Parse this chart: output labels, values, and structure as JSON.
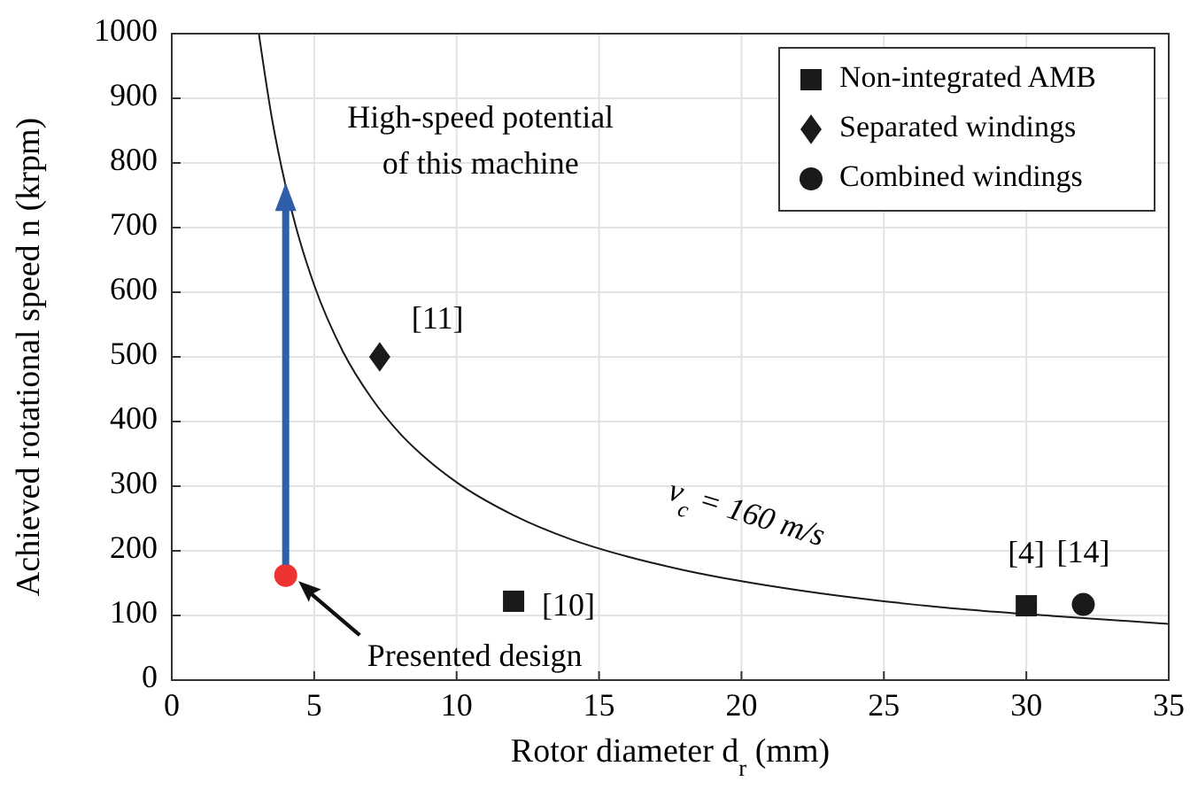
{
  "chart_data": {
    "type": "scatter",
    "xlabel": "Rotor diameter d$_{r}$ (mm)",
    "ylabel": "Achieved rotational speed n (krpm)",
    "xlim": [
      0,
      35
    ],
    "ylim": [
      0,
      1000
    ],
    "xticks": [
      0,
      5,
      10,
      15,
      20,
      25,
      30,
      35
    ],
    "yticks": [
      0,
      100,
      200,
      300,
      400,
      500,
      600,
      700,
      800,
      900,
      1000
    ],
    "grid": true,
    "legend": "top right",
    "series": [
      {
        "name": "Non-integrated AMB",
        "color": "#1a1a1a",
        "marker": "square",
        "x": [
          12,
          30
        ],
        "values": [
          122,
          115
        ]
      },
      {
        "name": "Separated windings",
        "color": "#1a1a1a",
        "marker": "diamond",
        "x": [
          7.3
        ],
        "values": [
          500
        ]
      },
      {
        "name": "Combined windings",
        "color": "#1a1a1a",
        "marker": "circle",
        "x": [
          32
        ],
        "values": [
          117
        ]
      },
      {
        "color": "#ee3333",
        "marker": "circle",
        "x": [
          4
        ],
        "values": [
          162
        ]
      },
      {
        "type": "line",
        "color": "#1a1a1a",
        "marker": "none",
        "x": [
          3.06,
          3.5,
          4,
          4.5,
          5,
          6,
          7,
          8,
          9,
          10,
          12,
          14,
          16,
          18,
          20,
          22,
          25,
          28,
          31,
          35
        ],
        "values": [
          999,
          873,
          764,
          679,
          611,
          509,
          437,
          382,
          340,
          306,
          255,
          218,
          191,
          170,
          153,
          139,
          122,
          109,
          99,
          87
        ]
      }
    ],
    "annotations": [
      {
        "text": "High-speed potential of this machine",
        "x": 4,
        "y": 764
      },
      "Presented design",
      {
        "text": "[11]",
        "x": 7.3,
        "y": 500
      },
      {
        "text": "[10]",
        "x": 12,
        "y": 122
      },
      {
        "text": "[4]",
        "x": 30,
        "y": 115
      },
      {
        "text": "[14]",
        "x": 32,
        "y": 117
      },
      "ν$_{c}$ = 160 m/s"
    ]
  }
}
